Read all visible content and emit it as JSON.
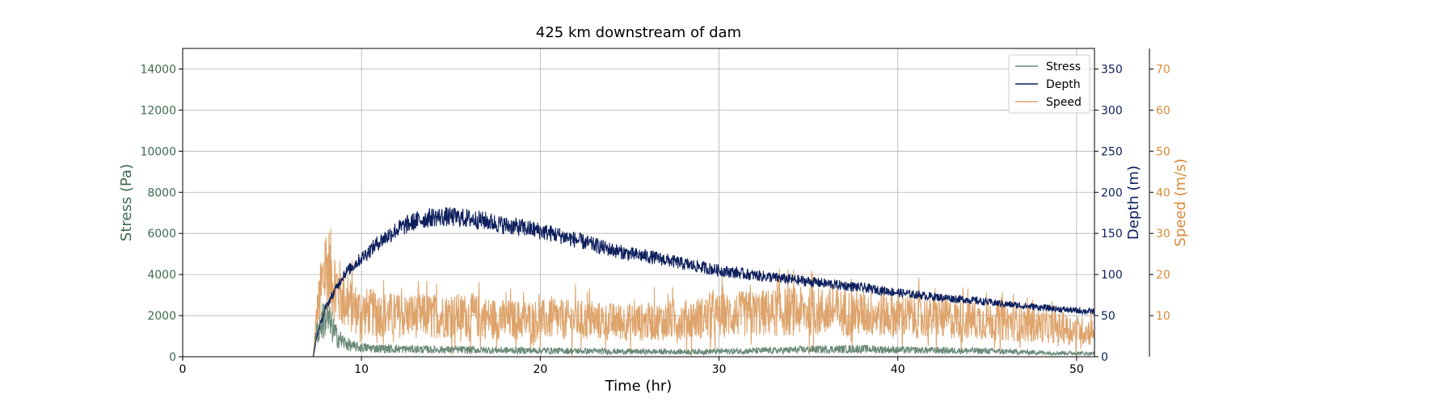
{
  "chart_data": {
    "type": "line",
    "title": "425 km downstream of dam",
    "xlabel": "Time (hr)",
    "xlim": [
      0,
      51
    ],
    "xticks": [
      0,
      10,
      20,
      30,
      40,
      50
    ],
    "grid": true,
    "legend_position": "top-right",
    "axes": {
      "stress": {
        "label": "Stress (Pa)",
        "ylim": [
          0,
          15000
        ],
        "ticks": [
          0,
          2000,
          4000,
          6000,
          8000,
          10000,
          12000,
          14000
        ],
        "color": "#3d6b4f"
      },
      "depth": {
        "label": "Depth (m)",
        "ylim": [
          0,
          375
        ],
        "ticks": [
          0,
          50,
          100,
          150,
          200,
          250,
          300,
          350
        ],
        "color": "#0d1f5c"
      },
      "speed": {
        "label": "Speed (m/s)",
        "ylim": [
          0,
          75
        ],
        "ticks": [
          10,
          20,
          30,
          40,
          50,
          60,
          70
        ],
        "color": "#d98a3a"
      }
    },
    "series": [
      {
        "name": "Stress",
        "axis": "stress",
        "color": "#6a8a78",
        "x": [
          0,
          7.3,
          7.5,
          8.0,
          8.3,
          8.6,
          9.0,
          9.5,
          10,
          11,
          12,
          14,
          16,
          18,
          20,
          22,
          25,
          28,
          30,
          33,
          35,
          38,
          40,
          43,
          45,
          48,
          51
        ],
        "y": [
          0,
          0,
          1200,
          2000,
          1500,
          1000,
          700,
          500,
          450,
          400,
          380,
          350,
          330,
          310,
          300,
          280,
          250,
          240,
          260,
          300,
          350,
          380,
          330,
          300,
          280,
          200,
          160
        ]
      },
      {
        "name": "Depth",
        "axis": "depth",
        "color": "#0d1f5c",
        "x": [
          0,
          7.3,
          7.5,
          8.0,
          8.5,
          9,
          10,
          11,
          12,
          13,
          14,
          15,
          16,
          17,
          18,
          19,
          20,
          21,
          22,
          23,
          24,
          25,
          26,
          27,
          28,
          29,
          30,
          32,
          34,
          36,
          38,
          40,
          42,
          44,
          46,
          48,
          50,
          51
        ],
        "y": [
          0,
          0,
          25,
          60,
          80,
          100,
          120,
          140,
          155,
          165,
          170,
          170,
          168,
          165,
          160,
          157,
          153,
          148,
          142,
          136,
          130,
          125,
          122,
          118,
          113,
          109,
          105,
          99,
          94,
          89,
          84,
          78,
          73,
          69,
          64,
          60,
          56,
          55
        ]
      },
      {
        "name": "Speed",
        "axis": "speed",
        "color": "#dea46c",
        "x": [
          0,
          7.3,
          7.5,
          8.0,
          8.3,
          8.7,
          9.0,
          9.5,
          10,
          12,
          14,
          16,
          18,
          20,
          22,
          24,
          26,
          28,
          30,
          32,
          34,
          36,
          38,
          40,
          42,
          44,
          46,
          48,
          50,
          51
        ],
        "y": [
          0,
          0,
          10,
          22,
          20,
          16,
          14,
          12,
          11,
          10,
          10,
          10,
          9,
          9,
          9,
          8.5,
          8.5,
          9,
          10,
          10.5,
          11,
          11,
          10.5,
          10,
          9.5,
          9,
          8.5,
          7.5,
          6.5,
          6
        ]
      }
    ]
  }
}
